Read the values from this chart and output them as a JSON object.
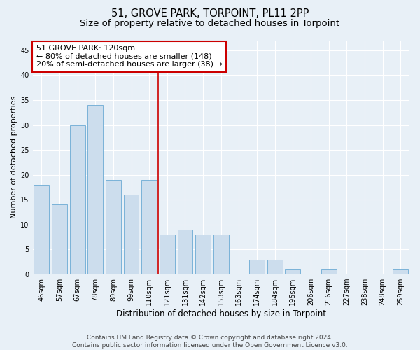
{
  "title": "51, GROVE PARK, TORPOINT, PL11 2PP",
  "subtitle": "Size of property relative to detached houses in Torpoint",
  "xlabel": "Distribution of detached houses by size in Torpoint",
  "ylabel": "Number of detached properties",
  "categories": [
    "46sqm",
    "57sqm",
    "67sqm",
    "78sqm",
    "89sqm",
    "99sqm",
    "110sqm",
    "121sqm",
    "131sqm",
    "142sqm",
    "153sqm",
    "163sqm",
    "174sqm",
    "184sqm",
    "195sqm",
    "206sqm",
    "216sqm",
    "227sqm",
    "238sqm",
    "248sqm",
    "259sqm"
  ],
  "values": [
    18,
    14,
    30,
    34,
    19,
    16,
    19,
    8,
    9,
    8,
    8,
    0,
    3,
    3,
    1,
    0,
    1,
    0,
    0,
    0,
    1
  ],
  "bar_color": "#ccdded",
  "bar_edgecolor": "#6aaad4",
  "vline_index": 7,
  "vline_color": "#cc0000",
  "annotation_text": "51 GROVE PARK: 120sqm\n← 80% of detached houses are smaller (148)\n20% of semi-detached houses are larger (38) →",
  "annotation_box_color": "#ffffff",
  "annotation_box_edgecolor": "#cc0000",
  "ylim": [
    0,
    47
  ],
  "yticks": [
    0,
    5,
    10,
    15,
    20,
    25,
    30,
    35,
    40,
    45
  ],
  "background_color": "#e8f0f7",
  "plot_bg_color": "#e8f0f7",
  "grid_color": "#ffffff",
  "footnote": "Contains HM Land Registry data © Crown copyright and database right 2024.\nContains public sector information licensed under the Open Government Licence v3.0.",
  "title_fontsize": 10.5,
  "subtitle_fontsize": 9.5,
  "xlabel_fontsize": 8.5,
  "ylabel_fontsize": 8,
  "tick_fontsize": 7,
  "annotation_fontsize": 8,
  "footnote_fontsize": 6.5
}
